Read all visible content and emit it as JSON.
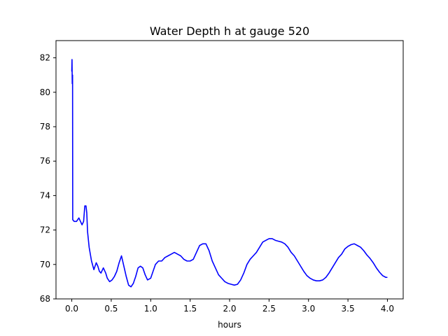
{
  "chart_data": {
    "type": "line",
    "title": "Water Depth h at gauge 520",
    "xlabel": "hours",
    "ylabel": "",
    "xlim": [
      -0.2,
      4.2
    ],
    "ylim": [
      68,
      83
    ],
    "xticks": [
      0.0,
      0.5,
      1.0,
      1.5,
      2.0,
      2.5,
      3.0,
      3.5,
      4.0
    ],
    "xtick_labels": [
      "0.0",
      "0.5",
      "1.0",
      "1.5",
      "2.0",
      "2.5",
      "3.0",
      "3.5",
      "4.0"
    ],
    "yticks": [
      68,
      70,
      72,
      74,
      76,
      78,
      80,
      82
    ],
    "ytick_labels": [
      "68",
      "70",
      "72",
      "74",
      "76",
      "78",
      "80",
      "82"
    ],
    "grid": false,
    "legend": "none",
    "series": [
      {
        "color": "#0000ff",
        "x": [
          0.0,
          0.003,
          0.006,
          0.01,
          0.012,
          0.03,
          0.06,
          0.09,
          0.11,
          0.13,
          0.15,
          0.165,
          0.18,
          0.19,
          0.2,
          0.22,
          0.25,
          0.28,
          0.31,
          0.33,
          0.35,
          0.37,
          0.4,
          0.43,
          0.45,
          0.48,
          0.51,
          0.54,
          0.57,
          0.6,
          0.63,
          0.66,
          0.69,
          0.72,
          0.75,
          0.78,
          0.81,
          0.84,
          0.87,
          0.9,
          0.93,
          0.96,
          1.0,
          1.03,
          1.06,
          1.1,
          1.14,
          1.18,
          1.22,
          1.26,
          1.3,
          1.34,
          1.38,
          1.42,
          1.46,
          1.5,
          1.54,
          1.58,
          1.62,
          1.66,
          1.7,
          1.74,
          1.78,
          1.82,
          1.86,
          1.9,
          1.94,
          1.98,
          2.02,
          2.06,
          2.1,
          2.14,
          2.18,
          2.22,
          2.26,
          2.3,
          2.34,
          2.38,
          2.42,
          2.46,
          2.5,
          2.54,
          2.58,
          2.62,
          2.66,
          2.7,
          2.74,
          2.78,
          2.82,
          2.86,
          2.9,
          2.94,
          2.98,
          3.02,
          3.06,
          3.1,
          3.14,
          3.18,
          3.22,
          3.26,
          3.3,
          3.34,
          3.38,
          3.42,
          3.46,
          3.5,
          3.54,
          3.58,
          3.62,
          3.66,
          3.7,
          3.74,
          3.78,
          3.82,
          3.86,
          3.9,
          3.94,
          3.98,
          4.0
        ],
        "y": [
          81.2,
          81.9,
          80.5,
          81.0,
          72.6,
          72.5,
          72.5,
          72.7,
          72.5,
          72.3,
          72.5,
          73.4,
          73.4,
          73.0,
          71.9,
          71.0,
          70.2,
          69.7,
          70.1,
          69.9,
          69.6,
          69.5,
          69.8,
          69.5,
          69.2,
          69.0,
          69.1,
          69.3,
          69.6,
          70.1,
          70.5,
          69.9,
          69.3,
          68.8,
          68.7,
          68.9,
          69.3,
          69.8,
          69.9,
          69.8,
          69.4,
          69.1,
          69.2,
          69.6,
          70.0,
          70.2,
          70.2,
          70.4,
          70.5,
          70.6,
          70.7,
          70.6,
          70.5,
          70.3,
          70.2,
          70.2,
          70.3,
          70.7,
          71.1,
          71.2,
          71.2,
          70.8,
          70.2,
          69.8,
          69.4,
          69.2,
          69.0,
          68.9,
          68.85,
          68.8,
          68.85,
          69.1,
          69.5,
          70.0,
          70.3,
          70.5,
          70.7,
          71.0,
          71.3,
          71.4,
          71.5,
          71.5,
          71.4,
          71.35,
          71.3,
          71.2,
          71.0,
          70.7,
          70.5,
          70.2,
          69.9,
          69.6,
          69.35,
          69.2,
          69.1,
          69.05,
          69.05,
          69.1,
          69.25,
          69.5,
          69.8,
          70.1,
          70.4,
          70.6,
          70.9,
          71.05,
          71.15,
          71.2,
          71.1,
          71.0,
          70.8,
          70.55,
          70.35,
          70.1,
          69.8,
          69.55,
          69.35,
          69.25,
          69.25
        ]
      }
    ]
  }
}
